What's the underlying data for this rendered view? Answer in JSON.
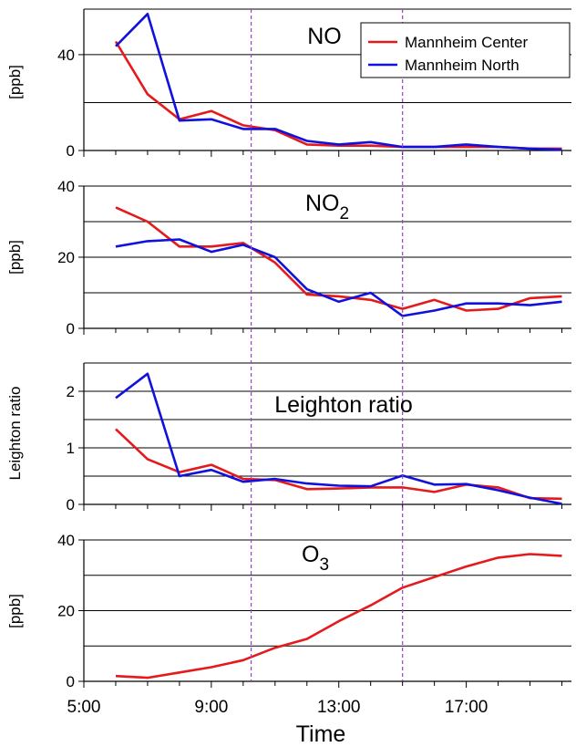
{
  "figure": {
    "xlabel": "Time",
    "x_tick_labels": [
      "5:00",
      "9:00",
      "13:00",
      "17:00"
    ],
    "x_ticks": [
      5,
      9,
      13,
      17
    ],
    "xlim": [
      5,
      20.3
    ],
    "x_minor_step": 1,
    "vlines": [
      10.25,
      15
    ],
    "colors": {
      "center": "#e41a1c",
      "north": "#1111dd",
      "vline": "#9a3fd4"
    }
  },
  "legend": {
    "placement": "top-right",
    "entries": [
      {
        "name": "Mannheim Center",
        "color": "#e41a1c"
      },
      {
        "name": "Mannheim North",
        "color": "#1111dd"
      }
    ]
  },
  "chart_data": [
    {
      "type": "line",
      "title": "NO",
      "ylabel": "[ppb]",
      "ylim": [
        0,
        59
      ],
      "y_ticks": [
        0,
        40
      ],
      "y_tick_labels": [
        "0",
        "40"
      ],
      "gridlines": [
        20,
        40,
        59
      ],
      "x": [
        6,
        7,
        8,
        9,
        10,
        11,
        12,
        13,
        14,
        15,
        16,
        17,
        18,
        19,
        20
      ],
      "series": [
        {
          "name": "Mannheim Center",
          "key": "center",
          "values": [
            45.5,
            23.5,
            13,
            16.5,
            10.5,
            8.5,
            2.5,
            2,
            2,
            1.5,
            1.5,
            1.5,
            1.5,
            0.8,
            0.8
          ]
        },
        {
          "name": "Mannheim North",
          "key": "north",
          "values": [
            43.5,
            57,
            12.5,
            13,
            9,
            9,
            4,
            2.5,
            3.5,
            1.5,
            1.5,
            2.5,
            1.5,
            0.8,
            0.3
          ]
        }
      ]
    },
    {
      "type": "line",
      "title_main": "NO",
      "title_sub": "2",
      "ylabel": "[ppb]",
      "ylim": [
        0,
        40
      ],
      "y_ticks": [
        0,
        20,
        40
      ],
      "y_tick_labels": [
        "0",
        "20",
        "40"
      ],
      "gridlines": [
        10,
        20,
        30,
        40
      ],
      "x": [
        6,
        7,
        8,
        9,
        10,
        11,
        12,
        13,
        14,
        15,
        16,
        17,
        18,
        19,
        20
      ],
      "series": [
        {
          "name": "Mannheim Center",
          "key": "center",
          "values": [
            34,
            30,
            23,
            23,
            24,
            18.5,
            9.5,
            9,
            8,
            5.5,
            8,
            5,
            5.5,
            8.5,
            9
          ]
        },
        {
          "name": "Mannheim North",
          "key": "north",
          "values": [
            23,
            24.5,
            25,
            21.5,
            23.5,
            20,
            11,
            7.5,
            10,
            3.5,
            5,
            7,
            7,
            6.5,
            7.5
          ]
        }
      ]
    },
    {
      "type": "line",
      "title": "Leighton ratio",
      "ylabel": "Leighton ratio",
      "ylim": [
        0,
        2.5
      ],
      "y_ticks": [
        0,
        1,
        2
      ],
      "y_tick_labels": [
        "0",
        "1",
        "2"
      ],
      "gridlines": [
        0.5,
        1,
        1.5,
        2,
        2.5
      ],
      "x": [
        6,
        7,
        8,
        9,
        10,
        11,
        12,
        13,
        14,
        15,
        16,
        17,
        18,
        19,
        20
      ],
      "series": [
        {
          "name": "Mannheim Center",
          "key": "center",
          "values": [
            1.33,
            0.8,
            0.57,
            0.7,
            0.45,
            0.43,
            0.27,
            0.28,
            0.3,
            0.3,
            0.22,
            0.35,
            0.3,
            0.11,
            0.1
          ]
        },
        {
          "name": "Mannheim North",
          "key": "north",
          "values": [
            1.88,
            2.31,
            0.5,
            0.61,
            0.4,
            0.45,
            0.37,
            0.33,
            0.32,
            0.51,
            0.35,
            0.36,
            0.25,
            0.12,
            0.01
          ]
        }
      ]
    },
    {
      "type": "line",
      "title_main": "O",
      "title_sub": "3",
      "ylabel": "[ppb]",
      "ylim": [
        0,
        40
      ],
      "y_ticks": [
        0,
        20,
        40
      ],
      "y_tick_labels": [
        "0",
        "20",
        "40"
      ],
      "gridlines": [
        10,
        20,
        30,
        40
      ],
      "x": [
        6,
        7,
        8,
        9,
        10,
        11,
        12,
        13,
        14,
        15,
        16,
        17,
        18,
        19,
        20
      ],
      "series": [
        {
          "name": "Mannheim Center",
          "key": "center",
          "values": [
            1.5,
            1,
            2.5,
            4,
            6,
            9.5,
            12,
            17,
            21.5,
            26.5,
            29.5,
            32.5,
            35,
            36,
            35.5
          ]
        }
      ]
    }
  ]
}
